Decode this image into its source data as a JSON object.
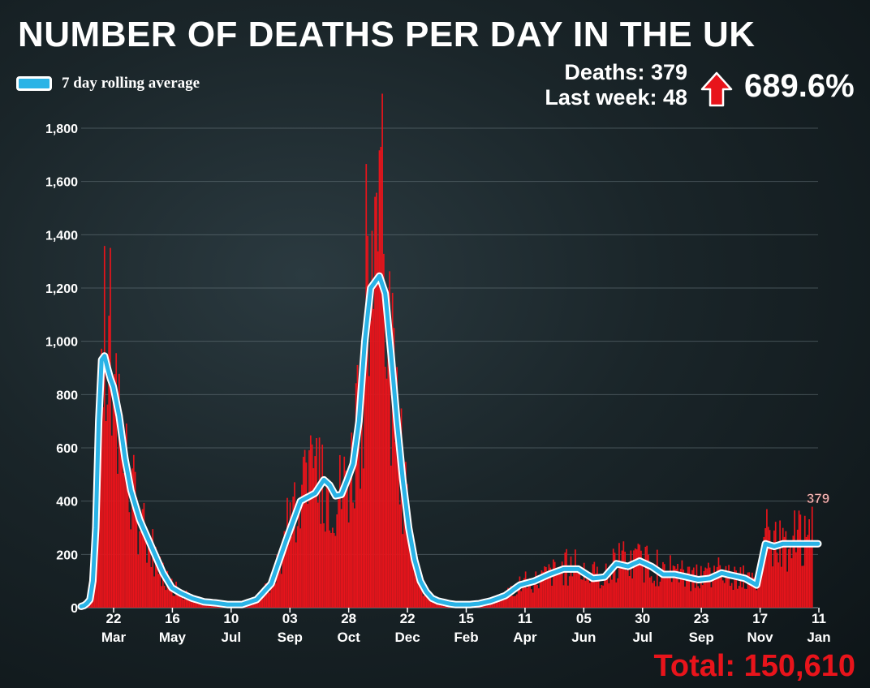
{
  "title": "NUMBER OF DEATHS PER DAY IN THE UK",
  "legend": {
    "label": "7 day rolling average",
    "color": "#2ab3e6"
  },
  "stats": {
    "deaths": "Deaths: 379",
    "last_week": "Last week: 48",
    "change": "689.6%",
    "arrow_icon": "up-arrow-icon",
    "arrow_color": "#e8141b"
  },
  "total": "Total: 150,610",
  "colors": {
    "bars": "#e8141b",
    "line": "#2ab3e6",
    "line_outline": "#ffffff",
    "grid": "#6b7a80"
  },
  "chart_data": {
    "type": "bar",
    "description_series": [
      "Daily deaths (bars)",
      "7 day rolling average (line)"
    ],
    "ylim": [
      0,
      1800
    ],
    "yticks": [
      0,
      200,
      400,
      600,
      800,
      1000,
      1200,
      1400,
      1600,
      1800
    ],
    "ytick_labels": [
      "0",
      "200",
      "400",
      "600",
      "800",
      "1,000",
      "1,200",
      "1,400",
      "1,600",
      "1,800"
    ],
    "xticks": [
      {
        "day": "22",
        "month": "Mar"
      },
      {
        "day": "16",
        "month": "May"
      },
      {
        "day": "10",
        "month": "Jul"
      },
      {
        "day": "03",
        "month": "Sep"
      },
      {
        "day": "28",
        "month": "Oct"
      },
      {
        "day": "22",
        "month": "Dec"
      },
      {
        "day": "15",
        "month": "Feb"
      },
      {
        "day": "11",
        "month": "Apr"
      },
      {
        "day": "05",
        "month": "Jun"
      },
      {
        "day": "30",
        "month": "Jul"
      },
      {
        "day": "23",
        "month": "Sep"
      },
      {
        "day": "17",
        "month": "Nov"
      },
      {
        "day": "11",
        "month": "Jan"
      }
    ],
    "annotation": "379",
    "series": [
      {
        "name": "7 day rolling average",
        "x": [
          0,
          3,
          6,
          8,
          10,
          12,
          14,
          16,
          18,
          20,
          22,
          26,
          30,
          34,
          40,
          48,
          56,
          62,
          68,
          76,
          84,
          92,
          100,
          110,
          120,
          130,
          140,
          150,
          160,
          166,
          170,
          174,
          178,
          182,
          186,
          190,
          194,
          198,
          204,
          208,
          212,
          216,
          220,
          224,
          228,
          232,
          236,
          240,
          244,
          248,
          252,
          256,
          260,
          266,
          272,
          280,
          290,
          300,
          310,
          320,
          330,
          340,
          350,
          358,
          366,
          374,
          382,
          390,
          398,
          406,
          414,
          422,
          430,
          438,
          446,
          454,
          462,
          468,
          474,
          480,
          488,
          496,
          500,
          504
        ],
        "y": [
          5,
          10,
          30,
          100,
          300,
          700,
          930,
          945,
          900,
          860,
          830,
          720,
          560,
          440,
          330,
          230,
          130,
          75,
          55,
          35,
          22,
          18,
          12,
          12,
          30,
          90,
          250,
          400,
          430,
          480,
          460,
          420,
          425,
          480,
          540,
          700,
          1000,
          1200,
          1245,
          1180,
          950,
          700,
          480,
          300,
          180,
          100,
          60,
          35,
          25,
          20,
          15,
          12,
          12,
          12,
          15,
          25,
          45,
          85,
          100,
          125,
          145,
          145,
          110,
          115,
          165,
          155,
          175,
          155,
          125,
          125,
          115,
          105,
          110,
          130,
          120,
          110,
          85,
          240,
          230,
          240,
          240,
          240,
          240,
          240
        ]
      }
    ]
  }
}
